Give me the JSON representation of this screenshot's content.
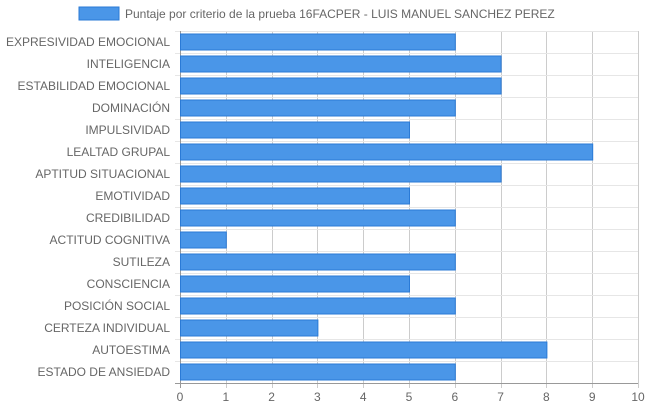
{
  "chart_data": {
    "type": "bar",
    "orientation": "horizontal",
    "legend_position": "top",
    "series": [
      {
        "name": "Puntaje por criterio de la prueba 16FACPER - LUIS MANUEL SANCHEZ PEREZ",
        "color": "#4a96e8",
        "border_color": "#2a7ad6",
        "values": [
          6,
          7,
          7,
          6,
          5,
          9,
          7,
          5,
          6,
          1,
          6,
          5,
          6,
          3,
          8,
          6
        ]
      }
    ],
    "categories": [
      "EXPRESIVIDAD EMOCIONAL",
      "INTELIGENCIA",
      "ESTABILIDAD EMOCIONAL",
      "DOMINACIÓN",
      "IMPULSIVIDAD",
      "LEALTAD GRUPAL",
      "APTITUD SITUACIONAL",
      "EMOTIVIDAD",
      "CREDIBILIDAD",
      "ACTITUD COGNITIVA",
      "SUTILEZA",
      "CONSCIENCIA",
      "POSICIÓN SOCIAL",
      "CERTEZA INDIVIDUAL",
      "AUTOESTIMA",
      "ESTADO DE ANSIEDAD"
    ],
    "xlim": [
      0,
      10
    ],
    "x_ticks": [
      "0",
      "1",
      "2",
      "3",
      "4",
      "5",
      "6",
      "7",
      "8",
      "9",
      "10"
    ],
    "grid": true,
    "grid_color": "#cccccc"
  }
}
